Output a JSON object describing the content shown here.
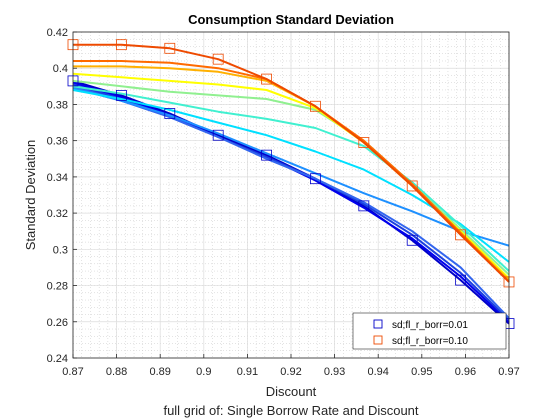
{
  "chart_data": {
    "type": "line",
    "title": "Consumption Standard Deviation",
    "xlabel": "Discount",
    "xlabel2": "full grid of: Single Borrow Rate and Discount",
    "ylabel": "Standard Deviation",
    "xlim": [
      0.87,
      0.97
    ],
    "ylim": [
      0.24,
      0.42
    ],
    "xticks": [
      0.87,
      0.88,
      0.89,
      0.9,
      0.91,
      0.92,
      0.93,
      0.94,
      0.95,
      0.96,
      0.97
    ],
    "xtick_labels": [
      "0.87",
      "0.88",
      "0.89",
      "0.9",
      "0.91",
      "0.92",
      "0.93",
      "0.94",
      "0.95",
      "0.96",
      "0.97"
    ],
    "yticks": [
      0.24,
      0.26,
      0.28,
      0.3,
      0.32,
      0.34,
      0.36,
      0.38,
      0.4,
      0.42
    ],
    "ytick_labels": [
      "0.24",
      "0.26",
      "0.28",
      "0.3",
      "0.32",
      "0.34",
      "0.36",
      "0.38",
      "0.4",
      "0.42"
    ],
    "grid": true,
    "legend_position": "bottom-right",
    "x": [
      0.87,
      0.8811,
      0.8922,
      0.9033,
      0.9144,
      0.9256,
      0.9367,
      0.9478,
      0.9589,
      0.97
    ],
    "series": [
      {
        "name": "sd;fl_r_borr=0.01",
        "color": "#0000c8",
        "marker": "square",
        "values": [
          0.393,
          0.385,
          0.375,
          0.363,
          0.352,
          0.339,
          0.324,
          0.305,
          0.283,
          0.259
        ]
      },
      {
        "color": "#0000ee",
        "values": [
          0.392,
          0.384,
          0.374,
          0.362,
          0.351,
          0.338,
          0.323,
          0.306,
          0.285,
          0.26
        ]
      },
      {
        "color": "#1a3fe0",
        "values": [
          0.391,
          0.383,
          0.373,
          0.362,
          0.351,
          0.339,
          0.325,
          0.308,
          0.287,
          0.261
        ]
      },
      {
        "color": "#3366ee",
        "values": [
          0.39,
          0.382,
          0.373,
          0.362,
          0.35,
          0.339,
          0.326,
          0.31,
          0.29,
          0.262
        ]
      },
      {
        "color": "#1e90ff",
        "values": [
          0.389,
          0.382,
          0.374,
          0.364,
          0.353,
          0.342,
          0.331,
          0.321,
          0.31,
          0.302
        ]
      },
      {
        "color": "#00e0ff",
        "values": [
          0.388,
          0.383,
          0.377,
          0.37,
          0.363,
          0.354,
          0.344,
          0.33,
          0.314,
          0.293
        ]
      },
      {
        "color": "#40f0d0",
        "values": [
          0.39,
          0.386,
          0.381,
          0.376,
          0.372,
          0.367,
          0.357,
          0.337,
          0.313,
          0.288
        ]
      },
      {
        "color": "#90f090",
        "values": [
          0.393,
          0.39,
          0.387,
          0.385,
          0.383,
          0.377,
          0.36,
          0.336,
          0.311,
          0.286
        ]
      },
      {
        "color": "#ffff00",
        "values": [
          0.397,
          0.395,
          0.393,
          0.391,
          0.388,
          0.378,
          0.359,
          0.335,
          0.31,
          0.284
        ]
      },
      {
        "color": "#ffb000",
        "values": [
          0.401,
          0.401,
          0.4,
          0.398,
          0.393,
          0.379,
          0.359,
          0.336,
          0.309,
          0.283
        ]
      },
      {
        "color": "#ff6a00",
        "values": [
          0.404,
          0.404,
          0.403,
          0.4,
          0.394,
          0.379,
          0.36,
          0.336,
          0.309,
          0.282
        ]
      },
      {
        "name": "sd;fl_r_borr=0.10",
        "color": "#ee4a00",
        "marker": "square",
        "values": [
          0.413,
          0.413,
          0.411,
          0.405,
          0.394,
          0.379,
          0.359,
          0.335,
          0.308,
          0.282
        ]
      }
    ]
  }
}
